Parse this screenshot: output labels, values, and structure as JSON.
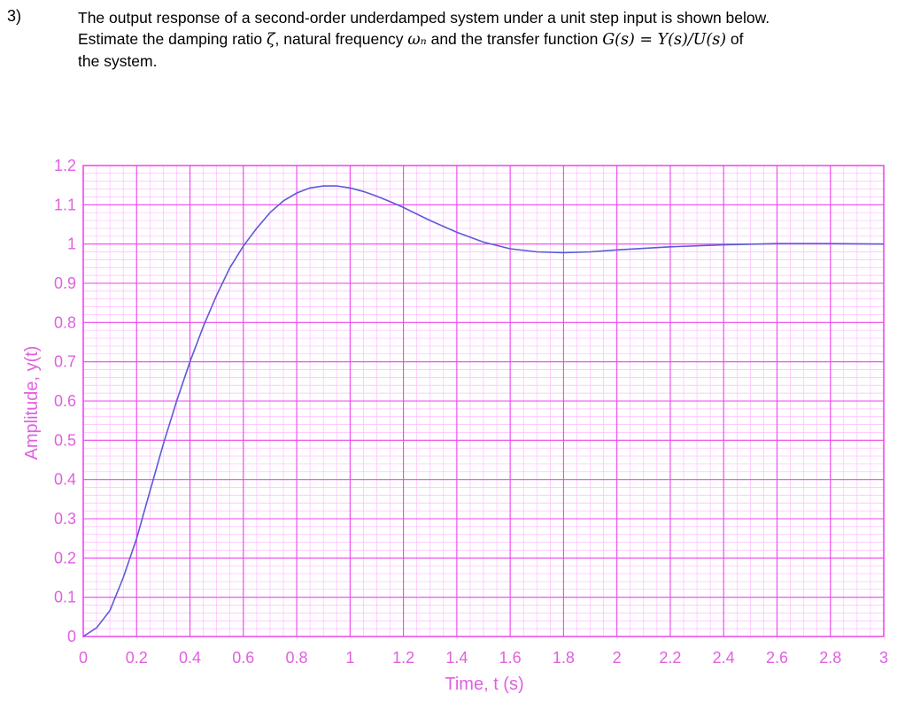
{
  "question": {
    "number": "3)",
    "line1": "The output response of a second-order underdamped system under a unit step input is shown below.",
    "line2_before": "Estimate the damping ratio ",
    "zeta": "ζ",
    "comma": ", natural frequency ",
    "omega": "ωₙ",
    "line2_mid": " and the transfer function ",
    "transfer": "G(s) = Y(s)/U(s)",
    "line2_after": " of",
    "line3": "the system."
  },
  "colors": {
    "grid_major": "#ee44ee",
    "grid_minor": "#ffbbff",
    "curve": "#5b5bd6",
    "label": "#e060e0"
  },
  "chart_data": {
    "type": "line",
    "title": "",
    "xlabel": "Time, t (s)",
    "ylabel": "Amplitude, y(t)",
    "xlim": [
      0,
      3
    ],
    "ylim": [
      0,
      1.2
    ],
    "xticks": [
      "0",
      "0.2",
      "0.4",
      "0.6",
      "0.8",
      "1",
      "1.2",
      "1.4",
      "1.6",
      "1.8",
      "2",
      "2.2",
      "2.4",
      "2.6",
      "2.8",
      "3"
    ],
    "yticks": [
      "0",
      "0.1",
      "0.2",
      "0.3",
      "0.4",
      "0.5",
      "0.6",
      "0.7",
      "0.8",
      "0.9",
      "1",
      "1.1",
      "1.2"
    ],
    "grid": true,
    "series": [
      {
        "x": [
          0,
          0.05,
          0.1,
          0.15,
          0.2,
          0.25,
          0.3,
          0.35,
          0.4,
          0.45,
          0.5,
          0.55,
          0.6,
          0.65,
          0.7,
          0.75,
          0.8,
          0.85,
          0.9,
          0.95,
          1.0,
          1.05,
          1.1,
          1.15,
          1.2,
          1.3,
          1.4,
          1.5,
          1.6,
          1.7,
          1.8,
          1.9,
          2.0,
          2.2,
          2.4,
          2.6,
          2.8,
          3.0
        ],
        "values": [
          0,
          0.022,
          0.066,
          0.15,
          0.25,
          0.37,
          0.49,
          0.6,
          0.7,
          0.79,
          0.87,
          0.94,
          0.995,
          1.04,
          1.08,
          1.11,
          1.13,
          1.143,
          1.148,
          1.148,
          1.143,
          1.134,
          1.122,
          1.108,
          1.093,
          1.06,
          1.03,
          1.005,
          0.988,
          0.98,
          0.978,
          0.98,
          0.985,
          0.993,
          0.998,
          1.001,
          1.001,
          1.0
        ]
      }
    ]
  }
}
